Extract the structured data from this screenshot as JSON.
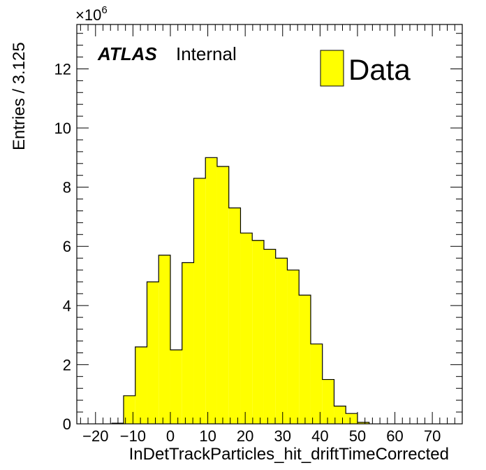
{
  "chart_data": {
    "type": "bar",
    "style": "histogram-step-filled",
    "fill_color": "#ffff00",
    "line_color": "#000000",
    "xlabel": "InDetTrackParticles_hit_driftTimeCorrected",
    "ylabel": "Entries / 3.125",
    "x_multiplier_label": "×10",
    "x_multiplier_exp": "6",
    "experiment_label": "ATLAS",
    "status_label": "Internal",
    "legend": [
      {
        "name": "Data",
        "color": "#ffff00"
      }
    ],
    "legend_position": "top-right",
    "xlim": [
      -25,
      78
    ],
    "ylim": [
      0,
      13.5
    ],
    "x_ticks": [
      "-20",
      "-10",
      "0",
      "10",
      "20",
      "30",
      "40",
      "50",
      "60",
      "70"
    ],
    "x_tick_values": [
      -20,
      -10,
      0,
      10,
      20,
      30,
      40,
      50,
      60,
      70
    ],
    "y_ticks": [
      "0",
      "2",
      "4",
      "6",
      "8",
      "10",
      "12"
    ],
    "y_tick_values": [
      0,
      2,
      4,
      6,
      8,
      10,
      12
    ],
    "bin_edges": [
      -15.625,
      -12.5,
      -9.375,
      -6.25,
      -3.125,
      0,
      3.125,
      6.25,
      9.375,
      12.5,
      15.625,
      18.75,
      21.875,
      25,
      28.125,
      31.25,
      34.375,
      37.5,
      40.625,
      43.75,
      46.875,
      50,
      53.125
    ],
    "values": [
      0.02,
      0.95,
      2.6,
      4.8,
      5.7,
      2.5,
      5.45,
      8.3,
      9.0,
      8.7,
      7.3,
      6.45,
      6.2,
      5.9,
      5.6,
      5.2,
      4.35,
      2.7,
      1.5,
      0.6,
      0.35,
      0.05
    ],
    "grid": false
  }
}
